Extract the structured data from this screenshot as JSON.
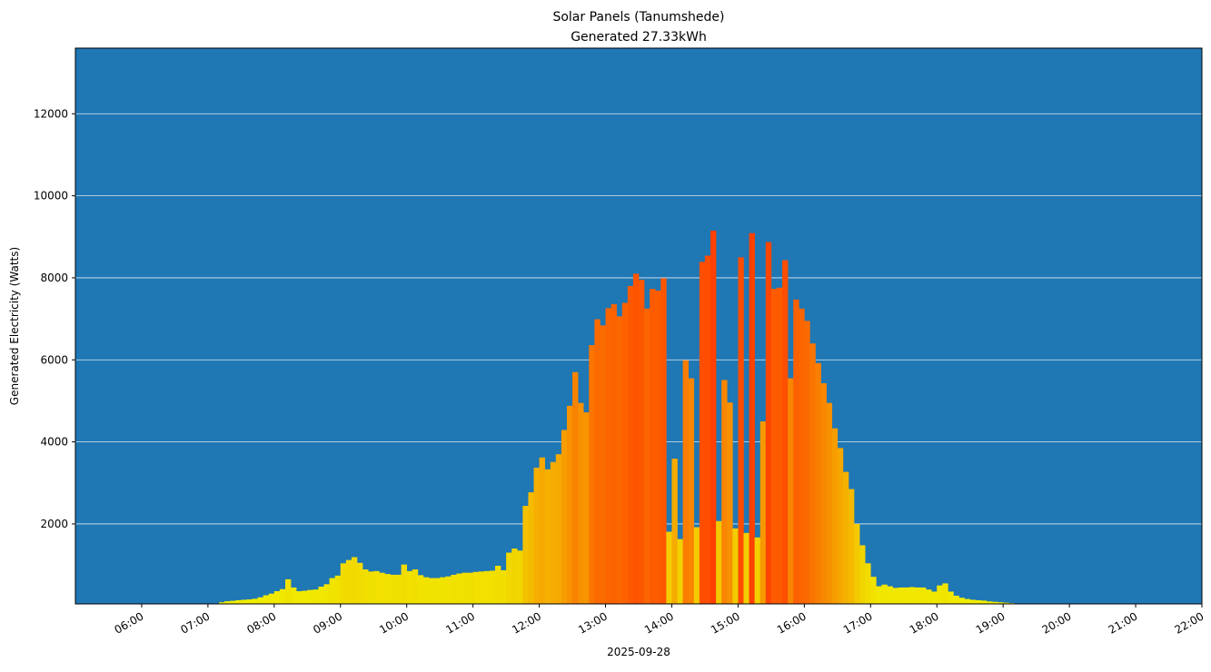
{
  "chart_data": {
    "type": "bar",
    "title": "Solar Panels (Tanumshede)",
    "subtitle": "Generated 27.33kWh",
    "xlabel": "2025-09-28",
    "ylabel": "Generated Electricity (Watts)",
    "xlim": [
      "05:00",
      "22:00"
    ],
    "ylim": [
      50,
      13600
    ],
    "x_ticks": [
      "06:00",
      "07:00",
      "08:00",
      "09:00",
      "10:00",
      "11:00",
      "12:00",
      "13:00",
      "14:00",
      "15:00",
      "16:00",
      "17:00",
      "18:00",
      "19:00",
      "20:00",
      "21:00",
      "22:00"
    ],
    "y_ticks": [
      2000,
      4000,
      6000,
      8000,
      10000,
      12000
    ],
    "grid": "horizontal",
    "background_color": "#1f77b4",
    "colormap": {
      "low": "#f0f000",
      "high": "#ff4000"
    },
    "interval_minutes": 5,
    "times": [
      "07:10",
      "07:15",
      "07:20",
      "07:25",
      "07:30",
      "07:35",
      "07:40",
      "07:45",
      "07:50",
      "07:55",
      "08:00",
      "08:05",
      "08:10",
      "08:15",
      "08:20",
      "08:25",
      "08:30",
      "08:35",
      "08:40",
      "08:45",
      "08:50",
      "08:55",
      "09:00",
      "09:05",
      "09:10",
      "09:15",
      "09:20",
      "09:25",
      "09:30",
      "09:35",
      "09:40",
      "09:45",
      "09:50",
      "09:55",
      "10:00",
      "10:05",
      "10:10",
      "10:15",
      "10:20",
      "10:25",
      "10:30",
      "10:35",
      "10:40",
      "10:45",
      "10:50",
      "10:55",
      "11:00",
      "11:05",
      "11:10",
      "11:15",
      "11:20",
      "11:25",
      "11:30",
      "11:35",
      "11:40",
      "11:45",
      "11:50",
      "11:55",
      "12:00",
      "12:05",
      "12:10",
      "12:15",
      "12:20",
      "12:25",
      "12:30",
      "12:35",
      "12:40",
      "12:45",
      "12:50",
      "12:55",
      "13:00",
      "13:05",
      "13:10",
      "13:15",
      "13:20",
      "13:25",
      "13:30",
      "13:35",
      "13:40",
      "13:45",
      "13:50",
      "13:55",
      "14:00",
      "14:05",
      "14:10",
      "14:15",
      "14:20",
      "14:25",
      "14:30",
      "14:35",
      "14:40",
      "14:45",
      "14:50",
      "14:55",
      "15:00",
      "15:05",
      "15:10",
      "15:15",
      "15:20",
      "15:25",
      "15:30",
      "15:35",
      "15:40",
      "15:45",
      "15:50",
      "15:55",
      "16:00",
      "16:05",
      "16:10",
      "16:15",
      "16:20",
      "16:25",
      "16:30",
      "16:35",
      "16:40",
      "16:45",
      "16:50",
      "16:55",
      "17:00",
      "17:05",
      "17:10",
      "17:15",
      "17:20",
      "17:25",
      "17:30",
      "17:35",
      "17:40",
      "17:45",
      "17:50",
      "17:55",
      "18:00",
      "18:05",
      "18:10",
      "18:15",
      "18:20",
      "18:25",
      "18:30",
      "18:35",
      "18:40",
      "18:45",
      "18:50",
      "18:55",
      "19:00",
      "19:05",
      "19:10",
      "19:15"
    ],
    "values": [
      90,
      115,
      125,
      140,
      150,
      160,
      175,
      210,
      260,
      300,
      360,
      410,
      650,
      450,
      360,
      370,
      390,
      400,
      470,
      530,
      680,
      740,
      1040,
      1120,
      1190,
      1050,
      890,
      840,
      850,
      810,
      780,
      760,
      760,
      1010,
      850,
      890,
      750,
      700,
      680,
      680,
      700,
      720,
      760,
      790,
      810,
      810,
      830,
      840,
      850,
      860,
      980,
      870,
      1300,
      1400,
      1350,
      2440,
      2770,
      3370,
      3620,
      3330,
      3510,
      3700,
      4290,
      4880,
      5700,
      4950,
      4720,
      6360,
      6990,
      6840,
      7260,
      7360,
      7060,
      7390,
      7800,
      8100,
      7950,
      7250,
      7730,
      7690,
      7990,
      1810,
      3590,
      1630,
      5990,
      5550,
      1920,
      8390,
      8540,
      9150,
      2070,
      5510,
      4960,
      1890,
      8500,
      1780,
      9090,
      1670,
      4500,
      8870,
      7730,
      7760,
      8430,
      5550,
      7470,
      7250,
      6950,
      6400,
      5920,
      5430,
      4950,
      4330,
      3850,
      3270,
      2850,
      2000,
      1480,
      1040,
      710,
      480,
      520,
      480,
      440,
      450,
      450,
      460,
      450,
      450,
      400,
      350,
      500,
      550,
      350,
      250,
      200,
      170,
      150,
      140,
      130,
      110,
      100,
      90,
      80,
      70,
      60,
      50
    ]
  }
}
